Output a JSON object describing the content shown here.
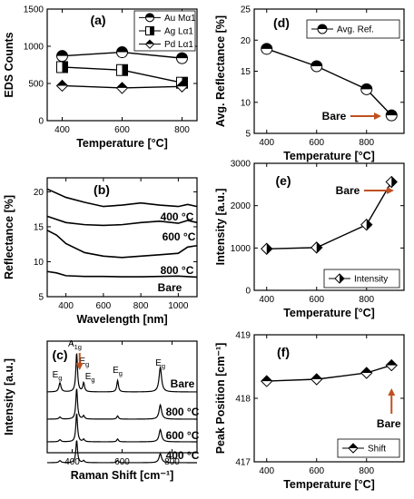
{
  "arrow_color": "#c0501f",
  "chart_data": [
    {
      "id": "a",
      "type": "line",
      "panel_label": "(a)",
      "xlabel": "Temperature [°C]",
      "ylabel": "EDS Counts",
      "xlim": [
        350,
        850
      ],
      "ylim": [
        0,
        1500
      ],
      "xticks": [
        400,
        600,
        800
      ],
      "yticks": [
        0,
        500,
        1000,
        1500
      ],
      "legend_position": "top-right",
      "x": [
        400,
        600,
        800
      ],
      "series": [
        {
          "name": "Au Mα1",
          "values": [
            870,
            920,
            840
          ],
          "marker": "circle-top"
        },
        {
          "name": "Ag Lα1",
          "values": [
            720,
            680,
            510
          ],
          "marker": "square-right"
        },
        {
          "name": "Pd Lα1",
          "values": [
            470,
            440,
            460
          ],
          "marker": "diamond-bottom"
        }
      ]
    },
    {
      "id": "b",
      "type": "line",
      "panel_label": "(b)",
      "xlabel": "Wavelength [nm]",
      "ylabel": "Reflectance [%]",
      "xlim": [
        300,
        1100
      ],
      "ylim": [
        5,
        22
      ],
      "xticks": [
        400,
        600,
        800,
        1000
      ],
      "yticks": [
        5,
        10,
        15,
        20
      ],
      "series_labels": [
        "400 °C",
        "600 °C",
        "800 °C",
        "Bare"
      ],
      "series": [
        {
          "x": [
            300,
            400,
            500,
            600,
            700,
            800,
            900,
            1000,
            1050,
            1100
          ],
          "values": [
            20.4,
            19.2,
            18.5,
            17.9,
            18.1,
            18.4,
            18.1,
            17.9,
            18.2,
            17.9
          ]
        },
        {
          "x": [
            300,
            400,
            500,
            600,
            700,
            800,
            900,
            1000,
            1050,
            1100
          ],
          "values": [
            16.5,
            15.6,
            15.3,
            15.2,
            15.3,
            15.6,
            15.8,
            15.5,
            15.9,
            15.6
          ]
        },
        {
          "x": [
            300,
            350,
            400,
            500,
            600,
            700,
            800,
            900,
            1000,
            1050,
            1100
          ],
          "values": [
            14.5,
            13.8,
            12.6,
            11.3,
            10.8,
            10.6,
            10.8,
            11.0,
            11.2,
            12.1,
            12.3
          ]
        },
        {
          "x": [
            300,
            350,
            400,
            500,
            600,
            700,
            800,
            900,
            1000,
            1100
          ],
          "values": [
            8.6,
            8.4,
            8.0,
            7.9,
            7.9,
            7.85,
            7.85,
            7.9,
            7.95,
            7.8
          ]
        }
      ]
    },
    {
      "id": "c",
      "type": "line",
      "panel_label": "(c)",
      "xlabel": "Raman Shift [cm⁻¹]",
      "ylabel": "Intensity [a.u.]",
      "xlim": [
        300,
        900
      ],
      "xticks": [
        400,
        600,
        800
      ],
      "series_labels": [
        "Bare",
        "800 °C",
        "600 °C",
        "400 °C"
      ],
      "peak_positions": [
        351,
        418,
        446,
        582,
        753
      ],
      "peak_heights": [
        [
          0.22,
          0.95,
          0.22,
          0.28,
          0.6
        ],
        [
          0.05,
          0.75,
          0.08,
          0.08,
          0.35
        ],
        [
          0.05,
          0.7,
          0.06,
          0.07,
          0.3
        ],
        [
          0.05,
          0.55,
          0.05,
          0.06,
          0.22
        ]
      ],
      "annotations": [
        {
          "text": "E",
          "sub": "g",
          "x": 351
        },
        {
          "text": "A",
          "sub": "1g",
          "x": 418
        },
        {
          "text": "E",
          "sub": "g",
          "x": 430
        },
        {
          "text": "E",
          "sub": "g",
          "x": 446
        },
        {
          "text": "E",
          "sub": "g",
          "x": 582
        },
        {
          "text": "E",
          "sub": "g",
          "x": 753
        }
      ]
    },
    {
      "id": "d",
      "type": "line",
      "panel_label": "(d)",
      "xlabel": "Temperature [°C]",
      "ylabel": "Avg. Reflectance [%]",
      "xlim": [
        350,
        950
      ],
      "ylim": [
        5,
        25
      ],
      "xticks": [
        400,
        600,
        800
      ],
      "yticks": [
        5,
        10,
        15,
        20,
        25
      ],
      "legend_position": "top-right",
      "x": [
        400,
        600,
        800,
        900
      ],
      "series": [
        {
          "name": "Avg. Ref.",
          "values": [
            18.6,
            15.8,
            12.1,
            7.9
          ],
          "marker": "circle-top"
        }
      ],
      "annotation": "Bare"
    },
    {
      "id": "e",
      "type": "line",
      "panel_label": "(e)",
      "xlabel": "Temperature [°C]",
      "ylabel": "Intensity [a.u.]",
      "xlim": [
        350,
        950
      ],
      "ylim": [
        0,
        3000
      ],
      "xticks": [
        400,
        600,
        800
      ],
      "yticks": [
        0,
        1000,
        2000,
        3000
      ],
      "legend_position": "bottom-right",
      "x": [
        400,
        600,
        800,
        900
      ],
      "series": [
        {
          "name": "Intensity",
          "values": [
            980,
            1010,
            1550,
            2560
          ],
          "marker": "diamond-right"
        }
      ],
      "annotation": "Bare"
    },
    {
      "id": "f",
      "type": "line",
      "panel_label": "(f)",
      "xlabel": "Temperature [°C]",
      "ylabel": "Peak Position [cm⁻¹]",
      "xlim": [
        350,
        950
      ],
      "ylim": [
        417,
        419
      ],
      "xticks": [
        400,
        600,
        800
      ],
      "yticks": [
        417,
        418,
        419
      ],
      "legend_position": "bottom-right",
      "x": [
        400,
        600,
        800,
        900
      ],
      "series": [
        {
          "name": "Shift",
          "values": [
            418.27,
            418.3,
            418.4,
            418.52
          ],
          "marker": "diamond-top"
        }
      ],
      "annotation": "Bare"
    }
  ]
}
